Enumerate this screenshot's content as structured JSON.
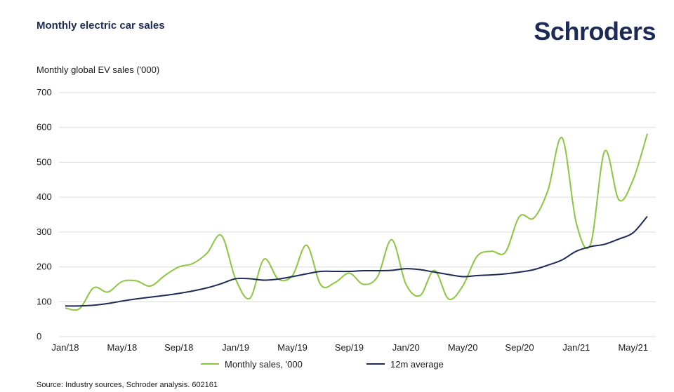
{
  "header": {
    "title": "Monthly electric car sales",
    "logo": "Schroders"
  },
  "footer": {
    "source": "Source: Industry sources, Schroder analysis. 602161"
  },
  "colors": {
    "monthly": "#8cc63f",
    "average": "#1d2a55",
    "grid": "#dcdcdc"
  },
  "chart_data": {
    "type": "line",
    "title": "Monthly electric car sales",
    "ylabel": "Monthly global EV sales ('000)",
    "xlabel": "",
    "ylim": [
      0,
      700
    ],
    "yticks": [
      0,
      100,
      200,
      300,
      400,
      500,
      600,
      700
    ],
    "x": [
      "Jan/18",
      "Feb/18",
      "Mar/18",
      "Apr/18",
      "May/18",
      "Jun/18",
      "Jul/18",
      "Aug/18",
      "Sep/18",
      "Oct/18",
      "Nov/18",
      "Dec/18",
      "Jan/19",
      "Feb/19",
      "Mar/19",
      "Apr/19",
      "May/19",
      "Jun/19",
      "Jul/19",
      "Aug/19",
      "Sep/19",
      "Oct/19",
      "Nov/19",
      "Dec/19",
      "Jan/20",
      "Feb/20",
      "Mar/20",
      "Apr/20",
      "May/20",
      "Jun/20",
      "Jul/20",
      "Aug/20",
      "Sep/20",
      "Oct/20",
      "Nov/20",
      "Dec/20",
      "Jan/21",
      "Feb/21",
      "Mar/21",
      "Apr/21",
      "May/21",
      "Jun/21"
    ],
    "xtick_labels": [
      "Jan/18",
      "May/18",
      "Sep/18",
      "Jan/19",
      "May/19",
      "Sep/19",
      "Jan/20",
      "May/20",
      "Sep/20",
      "Jan/21",
      "May/21"
    ],
    "xtick_every": 4,
    "grid": true,
    "legend_position": "bottom",
    "series": [
      {
        "name": "Monthly sales, '000",
        "values": [
          82,
          80,
          140,
          128,
          158,
          160,
          145,
          175,
          200,
          210,
          240,
          290,
          165,
          110,
          222,
          165,
          175,
          262,
          148,
          155,
          182,
          150,
          172,
          278,
          150,
          118,
          190,
          108,
          145,
          230,
          245,
          242,
          345,
          340,
          420,
          570,
          325,
          265,
          532,
          392,
          450,
          582
        ]
      },
      {
        "name": "12m average",
        "values": [
          88,
          88,
          90,
          95,
          102,
          108,
          113,
          118,
          124,
          131,
          140,
          152,
          166,
          166,
          162,
          165,
          172,
          180,
          187,
          187,
          187,
          189,
          189,
          190,
          195,
          192,
          185,
          178,
          172,
          175,
          177,
          180,
          185,
          192,
          205,
          220,
          245,
          258,
          265,
          280,
          298,
          345
        ]
      }
    ]
  }
}
